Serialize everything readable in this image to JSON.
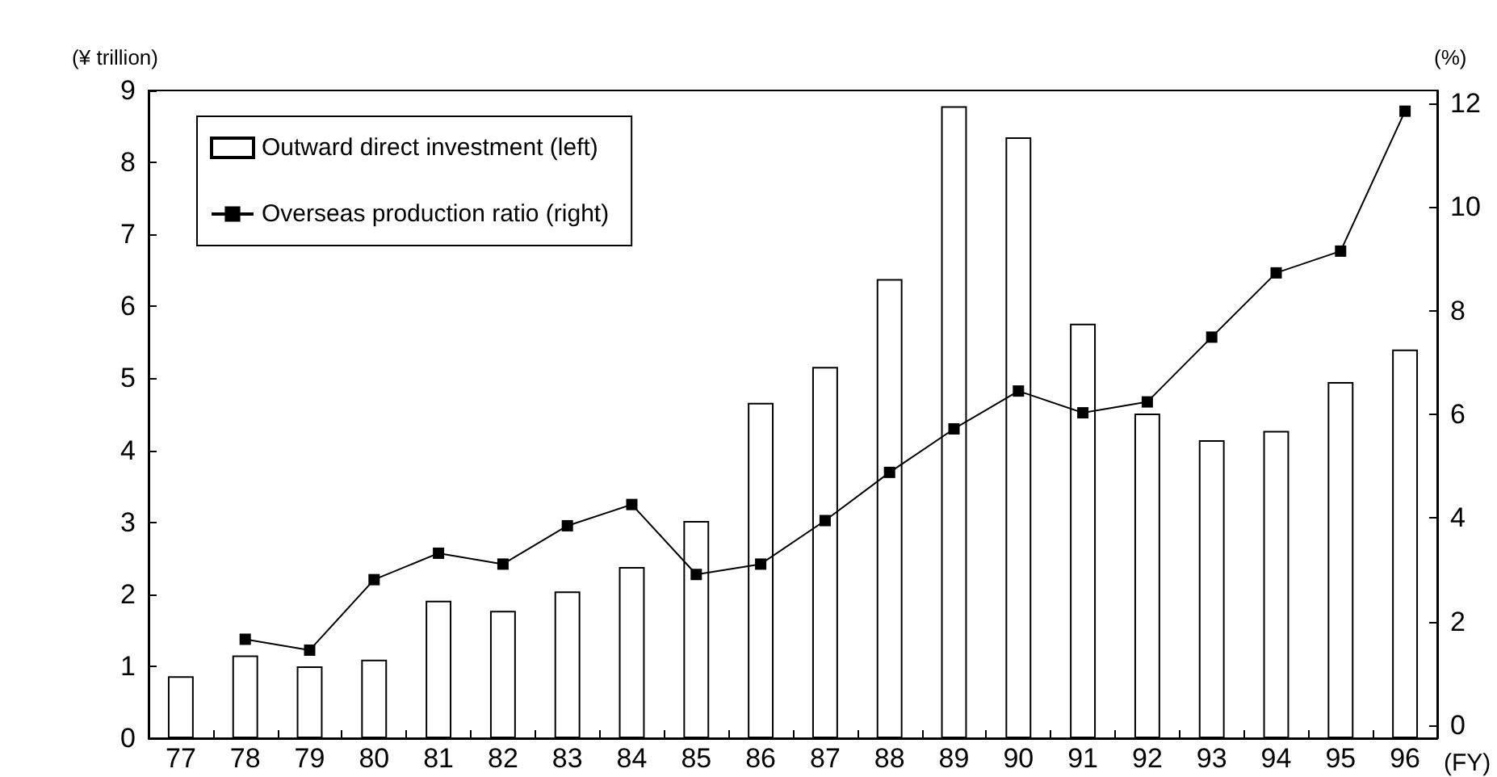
{
  "chart_data": {
    "type": "bar",
    "ylabel": "(¥ trillion)",
    "y2label": "(%)",
    "xlabel": "(FY)",
    "categories": [
      "77",
      "78",
      "79",
      "80",
      "81",
      "82",
      "83",
      "84",
      "85",
      "86",
      "87",
      "88",
      "89",
      "90",
      "91",
      "92",
      "93",
      "94",
      "95",
      "96"
    ],
    "series": [
      {
        "name": "Outward direct investment (left)",
        "color": "#ffffff",
        "values": [
          0.86,
          1.15,
          1.0,
          1.09,
          1.91,
          1.77,
          2.04,
          2.38,
          3.02,
          4.66,
          5.16,
          6.38,
          8.78,
          8.35,
          5.76,
          4.51,
          4.14,
          4.27,
          4.95,
          5.4
        ]
      },
      {
        "name": "Overseas production ratio (right)",
        "type": "line",
        "axis": "y2",
        "color": "#000000",
        "marker": "square",
        "values": [
          null,
          1.66,
          1.45,
          2.81,
          3.32,
          3.11,
          3.85,
          4.26,
          2.91,
          3.11,
          3.95,
          4.88,
          5.72,
          6.45,
          6.03,
          6.24,
          7.49,
          8.73,
          9.15,
          11.85
        ]
      }
    ],
    "ylim": [
      0,
      9
    ],
    "yticks": [
      0,
      1,
      2,
      3,
      4,
      5,
      6,
      7,
      8,
      9
    ],
    "y2lim": [
      -0.25,
      12.25
    ],
    "y2ticks": [
      0,
      2,
      4,
      6,
      8,
      10,
      12
    ],
    "grid": false,
    "legend": "top left"
  }
}
